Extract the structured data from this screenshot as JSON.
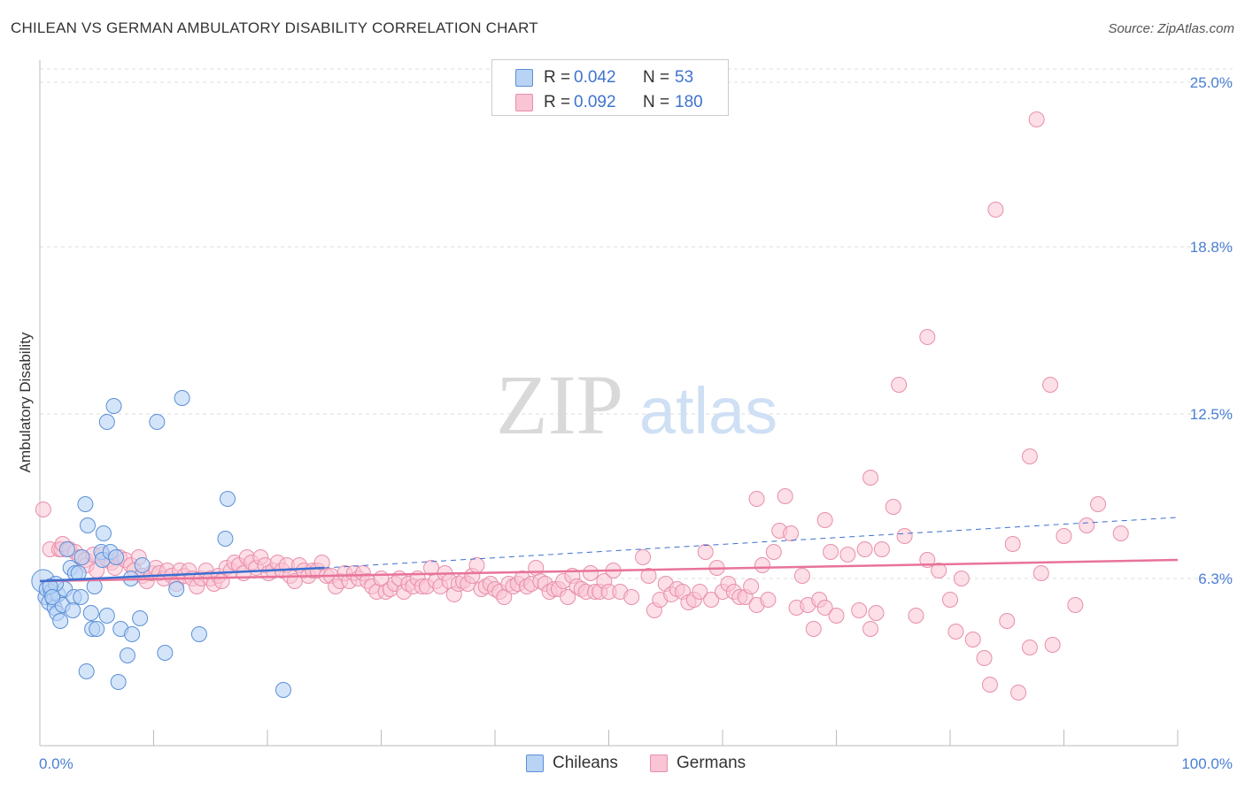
{
  "title": "CHILEAN VS GERMAN AMBULATORY DISABILITY CORRELATION CHART",
  "source": "Source: ZipAtlas.com",
  "watermark": {
    "zip": "ZIP",
    "atlas": "atlas"
  },
  "legend": {
    "rows": [
      {
        "r_label": "R =",
        "r_value": "0.042",
        "n_label": "N =",
        "n_value": "53"
      },
      {
        "r_label": "R =",
        "r_value": "0.092",
        "n_label": "N =",
        "n_value": "180"
      }
    ]
  },
  "bottom_legend": {
    "chileans": "Chileans",
    "germans": "Germans"
  },
  "colors": {
    "chilean_fill": "#b9d3f5",
    "chilean_stroke": "#5b8fd8",
    "chilean_line": "#3a6fd0",
    "german_fill": "#f9c4d4",
    "german_stroke": "#e88fab",
    "german_line": "#e8739a",
    "tick_text": "#4a7fd4"
  },
  "chart_data": {
    "type": "scatter",
    "title": "CHILEAN VS GERMAN AMBULATORY DISABILITY CORRELATION CHART",
    "xlabel": "",
    "ylabel": "Ambulatory Disability",
    "xlim": [
      0,
      100
    ],
    "ylim": [
      0,
      25.5
    ],
    "x_tick_labels": [
      "0.0%",
      "100.0%"
    ],
    "y_ticks": [
      6.3,
      12.5,
      18.8,
      25.0
    ],
    "y_tick_labels": [
      "6.3%",
      "12.5%",
      "18.8%",
      "25.0%"
    ],
    "grid": "horizontal dashed",
    "legend_position": "top-center",
    "series": [
      {
        "name": "Chileans",
        "R": 0.042,
        "N": 53,
        "trend": {
          "solid": [
            [
              0,
              6.2
            ],
            [
              25,
              6.7
            ]
          ],
          "dashed": [
            [
              25,
              6.7
            ],
            [
              100,
              8.6
            ]
          ]
        },
        "points": [
          [
            0.3,
            6.2
          ],
          [
            0.5,
            5.6
          ],
          [
            0.6,
            5.9
          ],
          [
            0.8,
            5.4
          ],
          [
            1.0,
            5.8
          ],
          [
            1.2,
            5.5
          ],
          [
            1.3,
            5.2
          ],
          [
            1.5,
            5.0
          ],
          [
            1.6,
            5.7
          ],
          [
            1.8,
            4.7
          ],
          [
            2.0,
            5.3
          ],
          [
            2.2,
            5.9
          ],
          [
            2.4,
            7.4
          ],
          [
            2.7,
            6.7
          ],
          [
            3.0,
            5.6
          ],
          [
            2.9,
            5.1
          ],
          [
            3.1,
            6.5
          ],
          [
            3.4,
            6.5
          ],
          [
            3.7,
            7.1
          ],
          [
            3.6,
            5.6
          ],
          [
            4.0,
            9.1
          ],
          [
            4.1,
            2.8
          ],
          [
            4.2,
            8.3
          ],
          [
            4.5,
            5.0
          ],
          [
            4.6,
            4.4
          ],
          [
            4.8,
            6.0
          ],
          [
            5.0,
            4.4
          ],
          [
            5.4,
            7.3
          ],
          [
            5.5,
            7.0
          ],
          [
            5.6,
            8.0
          ],
          [
            5.9,
            4.9
          ],
          [
            6.2,
            7.3
          ],
          [
            6.7,
            7.1
          ],
          [
            6.9,
            2.4
          ],
          [
            7.1,
            4.4
          ],
          [
            7.7,
            3.4
          ],
          [
            8.1,
            4.2
          ],
          [
            6.5,
            12.8
          ],
          [
            5.9,
            12.2
          ],
          [
            8.8,
            4.8
          ],
          [
            9.0,
            6.8
          ],
          [
            10.3,
            12.2
          ],
          [
            11.0,
            3.5
          ],
          [
            12.0,
            5.9
          ],
          [
            12.5,
            13.1
          ],
          [
            14.0,
            4.2
          ],
          [
            16.3,
            7.8
          ],
          [
            16.5,
            9.3
          ],
          [
            8.0,
            6.3
          ],
          [
            21.4,
            2.1
          ],
          [
            1.4,
            6.1
          ],
          [
            0.9,
            6.0
          ],
          [
            1.1,
            5.6
          ]
        ]
      },
      {
        "name": "Germans",
        "R": 0.092,
        "N": 180,
        "trend": {
          "solid": [
            [
              0,
              6.2
            ],
            [
              100,
              7.0
            ]
          ]
        },
        "points": [
          [
            0.3,
            8.9
          ],
          [
            0.9,
            7.4
          ],
          [
            1.7,
            7.4
          ],
          [
            1.9,
            7.4
          ],
          [
            2.0,
            7.6
          ],
          [
            2.6,
            7.4
          ],
          [
            3.1,
            7.3
          ],
          [
            3.5,
            7.1
          ],
          [
            4.0,
            7.0
          ],
          [
            4.1,
            6.8
          ],
          [
            4.7,
            7.2
          ],
          [
            5.0,
            6.6
          ],
          [
            5.5,
            7.2
          ],
          [
            6.0,
            7.0
          ],
          [
            6.3,
            6.9
          ],
          [
            6.6,
            6.7
          ],
          [
            7.0,
            7.1
          ],
          [
            7.5,
            7.0
          ],
          [
            8.0,
            6.8
          ],
          [
            8.3,
            6.6
          ],
          [
            8.7,
            7.1
          ],
          [
            9.0,
            6.4
          ],
          [
            9.4,
            6.2
          ],
          [
            9.8,
            6.5
          ],
          [
            10.2,
            6.7
          ],
          [
            10.5,
            6.5
          ],
          [
            10.9,
            6.3
          ],
          [
            11.2,
            6.6
          ],
          [
            11.6,
            6.4
          ],
          [
            12.0,
            6.1
          ],
          [
            12.3,
            6.6
          ],
          [
            12.7,
            6.4
          ],
          [
            13.1,
            6.6
          ],
          [
            13.4,
            6.3
          ],
          [
            13.8,
            6.0
          ],
          [
            14.2,
            6.3
          ],
          [
            14.6,
            6.6
          ],
          [
            15.0,
            6.3
          ],
          [
            15.3,
            6.1
          ],
          [
            15.7,
            6.4
          ],
          [
            16.0,
            6.2
          ],
          [
            16.4,
            6.7
          ],
          [
            16.8,
            6.6
          ],
          [
            17.1,
            6.9
          ],
          [
            17.5,
            6.8
          ],
          [
            17.9,
            6.5
          ],
          [
            18.2,
            7.1
          ],
          [
            18.6,
            6.9
          ],
          [
            19.0,
            6.7
          ],
          [
            19.4,
            7.1
          ],
          [
            19.8,
            6.8
          ],
          [
            20.1,
            6.5
          ],
          [
            20.5,
            6.6
          ],
          [
            20.9,
            6.9
          ],
          [
            21.3,
            6.6
          ],
          [
            21.7,
            6.8
          ],
          [
            22.0,
            6.4
          ],
          [
            22.4,
            6.2
          ],
          [
            22.8,
            6.8
          ],
          [
            23.2,
            6.6
          ],
          [
            23.6,
            6.4
          ],
          [
            24.0,
            6.6
          ],
          [
            24.4,
            6.6
          ],
          [
            24.8,
            6.9
          ],
          [
            25.2,
            6.4
          ],
          [
            25.6,
            6.4
          ],
          [
            26.0,
            6.0
          ],
          [
            26.4,
            6.2
          ],
          [
            26.8,
            6.5
          ],
          [
            27.2,
            6.2
          ],
          [
            27.6,
            6.5
          ],
          [
            28.0,
            6.3
          ],
          [
            28.4,
            6.5
          ],
          [
            28.8,
            6.2
          ],
          [
            29.2,
            6.0
          ],
          [
            29.6,
            5.8
          ],
          [
            30.0,
            6.3
          ],
          [
            30.4,
            5.8
          ],
          [
            30.8,
            5.9
          ],
          [
            31.2,
            6.1
          ],
          [
            31.6,
            6.3
          ],
          [
            32.0,
            5.8
          ],
          [
            32.4,
            6.1
          ],
          [
            32.8,
            6.0
          ],
          [
            33.2,
            6.3
          ],
          [
            33.6,
            6.0
          ],
          [
            34.0,
            6.0
          ],
          [
            34.4,
            6.7
          ],
          [
            34.8,
            6.2
          ],
          [
            35.2,
            6.0
          ],
          [
            35.6,
            6.5
          ],
          [
            36.0,
            6.2
          ],
          [
            36.4,
            5.7
          ],
          [
            36.8,
            6.1
          ],
          [
            37.2,
            6.2
          ],
          [
            37.6,
            6.1
          ],
          [
            38.0,
            6.4
          ],
          [
            38.4,
            6.8
          ],
          [
            38.8,
            5.9
          ],
          [
            39.2,
            6.0
          ],
          [
            39.6,
            6.1
          ],
          [
            40.0,
            5.9
          ],
          [
            40.4,
            5.8
          ],
          [
            40.8,
            5.6
          ],
          [
            41.2,
            6.1
          ],
          [
            41.6,
            6.0
          ],
          [
            42.0,
            6.1
          ],
          [
            42.4,
            6.3
          ],
          [
            42.8,
            6.0
          ],
          [
            43.2,
            6.1
          ],
          [
            43.6,
            6.7
          ],
          [
            44.0,
            6.2
          ],
          [
            44.4,
            6.1
          ],
          [
            44.8,
            5.8
          ],
          [
            45.2,
            5.9
          ],
          [
            45.6,
            5.9
          ],
          [
            46.0,
            6.2
          ],
          [
            46.4,
            5.6
          ],
          [
            46.8,
            6.4
          ],
          [
            47.2,
            6.0
          ],
          [
            47.6,
            5.9
          ],
          [
            48.0,
            5.8
          ],
          [
            48.4,
            6.5
          ],
          [
            48.8,
            5.8
          ],
          [
            49.2,
            5.8
          ],
          [
            49.6,
            6.2
          ],
          [
            50.0,
            5.8
          ],
          [
            50.4,
            6.6
          ],
          [
            51.0,
            5.8
          ],
          [
            52.0,
            5.6
          ],
          [
            53.0,
            7.1
          ],
          [
            53.5,
            6.4
          ],
          [
            54.0,
            5.1
          ],
          [
            54.5,
            5.5
          ],
          [
            55.0,
            6.1
          ],
          [
            55.5,
            5.7
          ],
          [
            56.0,
            5.9
          ],
          [
            56.5,
            5.8
          ],
          [
            57.0,
            5.4
          ],
          [
            57.5,
            5.5
          ],
          [
            58.0,
            5.8
          ],
          [
            58.5,
            7.3
          ],
          [
            59.0,
            5.5
          ],
          [
            59.5,
            6.7
          ],
          [
            60.0,
            5.8
          ],
          [
            60.5,
            6.1
          ],
          [
            61.0,
            5.8
          ],
          [
            61.5,
            5.6
          ],
          [
            62.0,
            5.6
          ],
          [
            62.5,
            6.0
          ],
          [
            63.0,
            5.3
          ],
          [
            63.5,
            6.8
          ],
          [
            64.0,
            5.5
          ],
          [
            64.5,
            7.3
          ],
          [
            65.0,
            8.1
          ],
          [
            65.5,
            9.4
          ],
          [
            66.0,
            8.0
          ],
          [
            66.5,
            5.2
          ],
          [
            67.0,
            6.4
          ],
          [
            67.5,
            5.3
          ],
          [
            68.0,
            4.4
          ],
          [
            68.5,
            5.5
          ],
          [
            69.0,
            5.2
          ],
          [
            69.5,
            7.3
          ],
          [
            70.0,
            4.9
          ],
          [
            71.0,
            7.2
          ],
          [
            72.0,
            5.1
          ],
          [
            72.5,
            7.4
          ],
          [
            73.0,
            4.4
          ],
          [
            73.5,
            5.0
          ],
          [
            74.0,
            7.4
          ],
          [
            75.0,
            9.0
          ],
          [
            76.0,
            7.9
          ],
          [
            77.0,
            4.9
          ],
          [
            78.0,
            7.0
          ],
          [
            79.0,
            6.6
          ],
          [
            80.0,
            5.5
          ],
          [
            80.5,
            4.3
          ],
          [
            81.0,
            6.3
          ],
          [
            82.0,
            4.0
          ],
          [
            83.0,
            3.3
          ],
          [
            83.5,
            2.3
          ],
          [
            85.0,
            4.7
          ],
          [
            85.5,
            7.6
          ],
          [
            86.0,
            2.0
          ],
          [
            87.0,
            3.7
          ],
          [
            88.0,
            6.5
          ],
          [
            89.0,
            3.8
          ],
          [
            90.0,
            7.9
          ],
          [
            91.0,
            5.3
          ],
          [
            92.0,
            8.3
          ],
          [
            63.0,
            9.3
          ],
          [
            69.0,
            8.5
          ],
          [
            73.0,
            10.1
          ],
          [
            75.5,
            13.6
          ],
          [
            78.0,
            15.4
          ],
          [
            87.0,
            10.9
          ],
          [
            88.8,
            13.6
          ],
          [
            84.0,
            20.2
          ],
          [
            87.6,
            23.6
          ],
          [
            93.0,
            9.1
          ],
          [
            95.0,
            8.0
          ]
        ]
      }
    ]
  }
}
